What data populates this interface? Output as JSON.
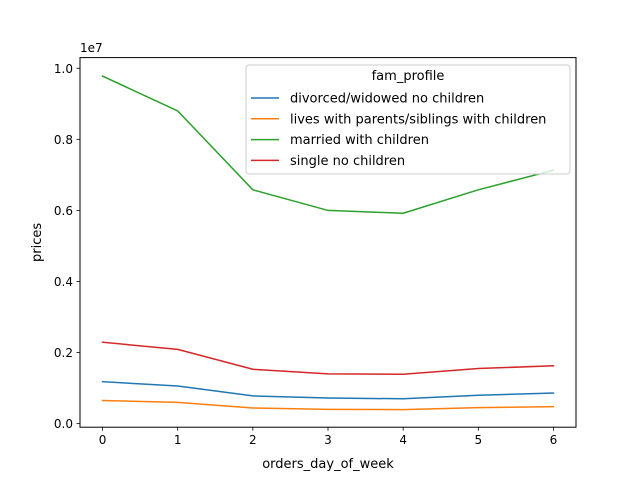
{
  "chart_data": {
    "type": "line",
    "title": "",
    "xlabel": "orders_day_of_week",
    "ylabel": "prices",
    "y_offset_label": "1e7",
    "x": [
      0,
      1,
      2,
      3,
      4,
      5,
      6
    ],
    "xticks": [
      "0",
      "1",
      "2",
      "3",
      "4",
      "5",
      "6"
    ],
    "yticks": [
      "0.0",
      "0.2",
      "0.4",
      "0.6",
      "0.8",
      "1.0"
    ],
    "ytick_values": [
      0,
      2000000,
      4000000,
      6000000,
      8000000,
      10000000
    ],
    "xlim": [
      -0.3,
      6.3
    ],
    "ylim": [
      -100000,
      10300000
    ],
    "grid": false,
    "legend": {
      "title": "fam_profile",
      "location": "upper right"
    },
    "series": [
      {
        "name": "divorced/widowed no children",
        "color": "#1f77b4",
        "values": [
          1180000,
          1060000,
          780000,
          720000,
          700000,
          800000,
          860000
        ]
      },
      {
        "name": "lives with parents/siblings with children",
        "color": "#ff7f0e",
        "values": [
          650000,
          600000,
          440000,
          400000,
          395000,
          450000,
          480000
        ]
      },
      {
        "name": "married with children",
        "color": "#2ca02c",
        "values": [
          9780000,
          8800000,
          6580000,
          6000000,
          5920000,
          6580000,
          7130000
        ]
      },
      {
        "name": "single no children",
        "color": "#d62728",
        "values": [
          2290000,
          2090000,
          1530000,
          1400000,
          1390000,
          1550000,
          1630000
        ]
      }
    ]
  }
}
